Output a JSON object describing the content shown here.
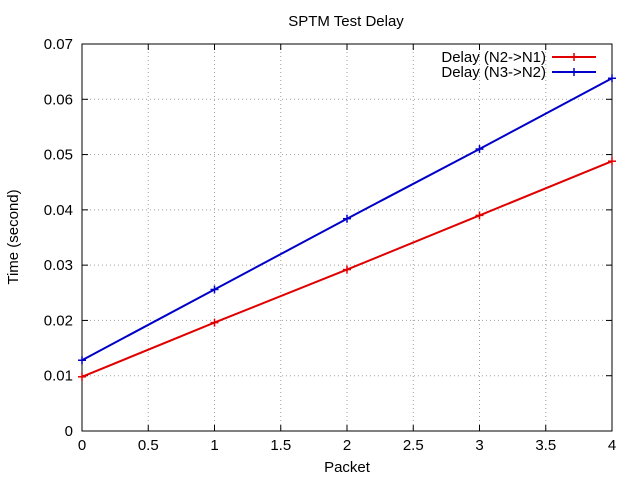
{
  "chart_data": {
    "type": "line",
    "title": "SPTM Test Delay",
    "xlabel": "Packet",
    "ylabel": "Time (second)",
    "xlim": [
      0,
      4
    ],
    "ylim": [
      0,
      0.07
    ],
    "xticks": [
      "0",
      "0.5",
      "1",
      "1.5",
      "2",
      "2.5",
      "3",
      "3.5",
      "4"
    ],
    "yticks": [
      "0",
      "0.01",
      "0.02",
      "0.03",
      "0.04",
      "0.05",
      "0.06",
      "0.07"
    ],
    "grid": true,
    "legend_position": "top-right",
    "series": [
      {
        "name": "Delay (N2->N1)",
        "color": "#e00000",
        "x": [
          0,
          1,
          2,
          3,
          4
        ],
        "y": [
          0.0098,
          0.0196,
          0.0292,
          0.039,
          0.0488
        ]
      },
      {
        "name": "Delay (N3->N2)",
        "color": "#0000c8",
        "x": [
          0,
          1,
          2,
          3,
          4
        ],
        "y": [
          0.0128,
          0.0256,
          0.0384,
          0.051,
          0.0638
        ]
      }
    ]
  }
}
